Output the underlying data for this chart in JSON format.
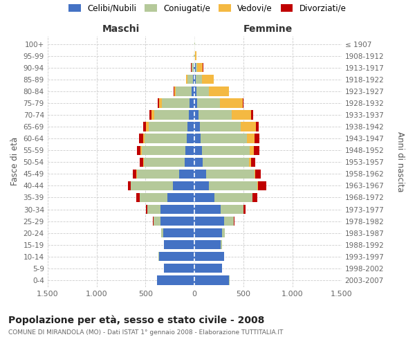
{
  "age_groups": [
    "0-4",
    "5-9",
    "10-14",
    "15-19",
    "20-24",
    "25-29",
    "30-34",
    "35-39",
    "40-44",
    "45-49",
    "50-54",
    "55-59",
    "60-64",
    "65-69",
    "70-74",
    "75-79",
    "80-84",
    "85-89",
    "90-94",
    "95-99",
    "100+"
  ],
  "birth_years": [
    "2003-2007",
    "1998-2002",
    "1993-1997",
    "1988-1992",
    "1983-1987",
    "1978-1982",
    "1973-1977",
    "1968-1972",
    "1963-1967",
    "1958-1962",
    "1953-1957",
    "1948-1952",
    "1943-1947",
    "1938-1942",
    "1933-1937",
    "1928-1932",
    "1923-1927",
    "1918-1922",
    "1913-1917",
    "1908-1912",
    "≤ 1907"
  ],
  "maschi_celibi": [
    380,
    310,
    360,
    310,
    320,
    350,
    350,
    280,
    220,
    160,
    100,
    90,
    80,
    70,
    60,
    50,
    30,
    15,
    8,
    2,
    2
  ],
  "maschi_coniugati": [
    2,
    2,
    5,
    5,
    20,
    70,
    130,
    280,
    430,
    430,
    420,
    450,
    430,
    400,
    350,
    280,
    160,
    60,
    20,
    5,
    2
  ],
  "maschi_vedovi": [
    0,
    0,
    0,
    0,
    0,
    1,
    1,
    2,
    2,
    3,
    5,
    10,
    15,
    25,
    30,
    30,
    15,
    10,
    5,
    2,
    0
  ],
  "maschi_divorziati": [
    0,
    0,
    0,
    0,
    2,
    5,
    15,
    30,
    30,
    35,
    35,
    40,
    40,
    30,
    20,
    15,
    5,
    2,
    2,
    0,
    0
  ],
  "femmine_nubili": [
    355,
    280,
    300,
    270,
    280,
    300,
    270,
    200,
    150,
    120,
    85,
    75,
    65,
    55,
    40,
    30,
    20,
    15,
    10,
    2,
    2
  ],
  "femmine_coniugate": [
    2,
    2,
    5,
    10,
    30,
    100,
    230,
    390,
    490,
    490,
    470,
    490,
    470,
    420,
    340,
    230,
    130,
    60,
    20,
    5,
    2
  ],
  "femmine_vedove": [
    0,
    0,
    0,
    0,
    0,
    1,
    2,
    3,
    5,
    10,
    20,
    40,
    80,
    150,
    200,
    230,
    200,
    120,
    55,
    15,
    5
  ],
  "femmine_divorziate": [
    0,
    0,
    0,
    0,
    2,
    5,
    20,
    50,
    90,
    55,
    45,
    55,
    45,
    30,
    20,
    10,
    5,
    2,
    2,
    0,
    0
  ],
  "color_celibi": "#4472C4",
  "color_coniugati": "#B5C99A",
  "color_vedovi": "#F4B942",
  "color_divorziati": "#C00000",
  "legend_labels": [
    "Celibi/Nubili",
    "Coniugati/e",
    "Vedovi/e",
    "Divorziati/e"
  ],
  "title": "Popolazione per età, sesso e stato civile - 2008",
  "subtitle": "COMUNE DI MIRANDOLA (MO) - Dati ISTAT 1° gennaio 2008 - Elaborazione TUTTITALIA.IT",
  "label_maschi": "Maschi",
  "label_femmine": "Femmine",
  "ylabel_left": "Fasce di età",
  "ylabel_right": "Anni di nascita",
  "xlim": 1500,
  "xtick_vals": [
    -1500,
    -1000,
    -500,
    0,
    500,
    1000,
    1500
  ],
  "xtick_lbls": [
    "1.500",
    "1.000",
    "500",
    "0",
    "500",
    "1.000",
    "1.500"
  ],
  "bg_color": "#FFFFFF",
  "grid_color": "#CCCCCC"
}
